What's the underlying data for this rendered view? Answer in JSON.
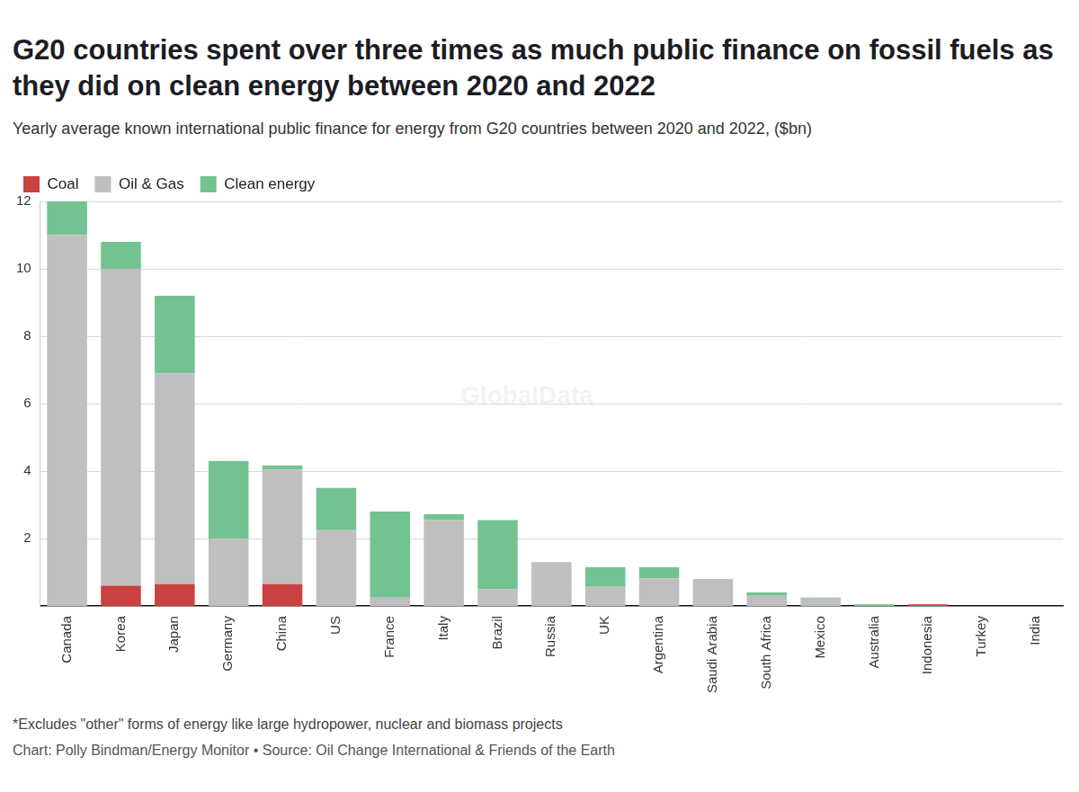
{
  "chart_data": {
    "type": "bar",
    "title": "G20 countries spent over three times as much public finance on fossil fuels as they did on clean energy between 2020 and 2022",
    "subtitle": "Yearly average known international public finance for energy from G20 countries between 2020 and 2022, ($bn)",
    "footnote": "*Excludes \"other\" forms of energy like large hydropower, nuclear and biomass projects",
    "credit": "Chart: Polly Bindman/Energy Monitor • Source: Oil Change International & Friends of the Earth",
    "watermark": "GlobalData",
    "categories": [
      "Canada",
      "Korea",
      "Japan",
      "Germany",
      "China",
      "US",
      "France",
      "Italy",
      "Brazil",
      "Russia",
      "UK",
      "Argentina",
      "Saudi Arabia",
      "South Africa",
      "Mexico",
      "Australia",
      "Indonesia",
      "Turkey",
      "India"
    ],
    "series": [
      {
        "name": "Coal",
        "color": "#c94141",
        "values": [
          0,
          0.6,
          0.65,
          0,
          0.65,
          0,
          0,
          0,
          0,
          0,
          0,
          0,
          0,
          0,
          0,
          0,
          0.05,
          0,
          0
        ]
      },
      {
        "name": "Oil & Gas",
        "color": "#bfbfbf",
        "values": [
          11.0,
          9.4,
          6.25,
          2.0,
          3.4,
          2.25,
          0.25,
          2.55,
          0.5,
          1.3,
          0.57,
          0.82,
          0.8,
          0.3,
          0.22,
          0,
          0,
          0,
          0
        ]
      },
      {
        "name": "Clean energy",
        "color": "#72c391",
        "values": [
          1.0,
          0.8,
          2.3,
          2.3,
          0.12,
          1.25,
          2.55,
          0.17,
          2.05,
          0,
          0.58,
          0.33,
          0,
          0.1,
          0.03,
          0.05,
          0,
          0,
          0
        ]
      }
    ],
    "stacked": true,
    "ylim": [
      0,
      12
    ],
    "yticks": [
      2,
      4,
      6,
      8,
      10,
      12
    ],
    "grid": true,
    "legend": "top-left"
  }
}
